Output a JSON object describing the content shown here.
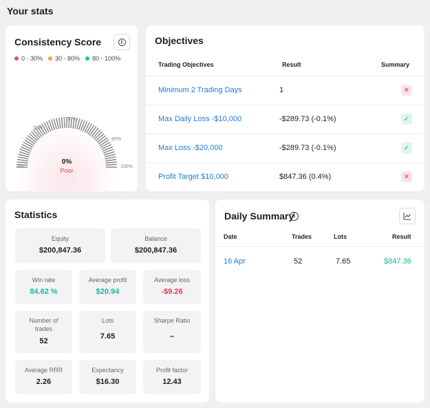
{
  "page_title": "Your stats",
  "consistency": {
    "title": "Consistency Score",
    "legend": [
      {
        "label": "0 - 30%",
        "color": "#e84a5f"
      },
      {
        "label": "30 - 80%",
        "color": "#f4a23c"
      },
      {
        "label": "80 - 100%",
        "color": "#1cc2b0"
      }
    ],
    "gauge_labels": {
      "l0": "0%",
      "l30": "30%",
      "l50": "50%",
      "l80": "80%",
      "l100": "100%"
    },
    "value": "0%",
    "rating": "Poor"
  },
  "objectives": {
    "title": "Objectives",
    "headers": {
      "objective": "Trading Objectives",
      "result": "Result",
      "summary": "Summary"
    },
    "rows": [
      {
        "objective": "Minimum 2 Trading Days",
        "result": "1",
        "status": "fail",
        "icon": "✕"
      },
      {
        "objective": "Max Daily Loss -$10,000",
        "result": "-$289.73 (-0.1%)",
        "status": "pass",
        "icon": "✓"
      },
      {
        "objective": "Max Loss -$20,000",
        "result": "-$289.73 (-0.1%)",
        "status": "pass",
        "icon": "✓"
      },
      {
        "objective": "Profit Target $10,000",
        "result": "$847.36 (0.4%)",
        "status": "fail",
        "icon": "✕"
      }
    ]
  },
  "statistics": {
    "title": "Statistics",
    "equity": {
      "label": "Equity",
      "value": "$200,847.36"
    },
    "balance": {
      "label": "Balance",
      "value": "$200,847.36"
    },
    "win_rate": {
      "label": "Win rate",
      "value": "84.62 %"
    },
    "avg_profit": {
      "label": "Average profit",
      "value": "$20.94"
    },
    "avg_loss": {
      "label": "Average loss",
      "value": "-$9.26"
    },
    "num_trades": {
      "label": "Number of trades",
      "value": "52"
    },
    "lots": {
      "label": "Lots",
      "value": "7.65"
    },
    "sharpe": {
      "label": "Sharpe Ratio",
      "value": "–"
    },
    "avg_rrr": {
      "label": "Average RRR",
      "value": "2.26"
    },
    "expectancy": {
      "label": "Expectancy",
      "value": "$16.30"
    },
    "profit_factor": {
      "label": "Profit factor",
      "value": "12.43"
    }
  },
  "daily_summary": {
    "title": "Daily Summary",
    "headers": {
      "date": "Date",
      "trades": "Trades",
      "lots": "Lots",
      "result": "Result"
    },
    "rows": [
      {
        "date": "16 Apr",
        "trades": "52",
        "lots": "7.65",
        "result": "$847.36"
      }
    ]
  }
}
